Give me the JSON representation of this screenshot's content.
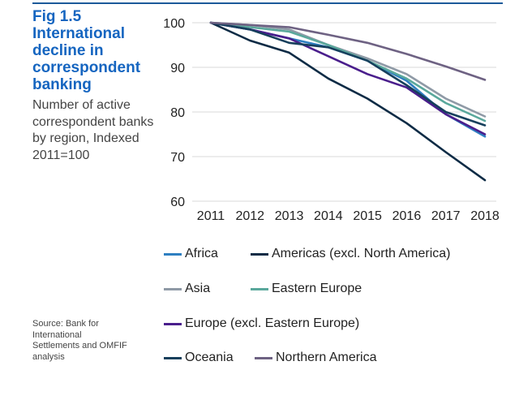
{
  "header": {
    "fig_title": "Fig 1.5 International decline in correspondent banking",
    "subtitle": "Number of active correspondent banks by region, Indexed 2011=100",
    "source": "Source: Bank for International Settlements and OMFIF analysis"
  },
  "chart_data": {
    "type": "line",
    "title": "Fig 1.5 International decline in correspondent banking",
    "subtitle": "Number of active correspondent banks by region, Indexed 2011=100",
    "xlabel": "",
    "ylabel": "",
    "x": [
      "2011",
      "2012",
      "2013",
      "2014",
      "2015",
      "2016",
      "2017",
      "2018"
    ],
    "ylim": [
      60,
      100
    ],
    "yticks": [
      "100",
      "90",
      "80",
      "70",
      "60"
    ],
    "grid": true,
    "legend_position": "bottom",
    "series": [
      {
        "name": "Africa",
        "color": "#2e7fc1",
        "values": [
          100,
          98.5,
          96.5,
          94.5,
          91.5,
          87,
          79.5,
          74.5
        ]
      },
      {
        "name": "Americas (excl. North America)",
        "color": "#0d2b45",
        "values": [
          100,
          96,
          93.3,
          87.5,
          83,
          77.5,
          71,
          64.7
        ]
      },
      {
        "name": "Asia",
        "color": "#8f9aa6",
        "values": [
          100,
          99.5,
          98.5,
          95,
          92,
          88.5,
          83,
          79
        ]
      },
      {
        "name": "Eastern Europe",
        "color": "#5aa89c",
        "values": [
          100,
          99,
          98,
          95,
          91.5,
          87.5,
          82,
          78
        ]
      },
      {
        "name": "Europe (excl. Eastern Europe)",
        "color": "#4a1e8c",
        "values": [
          100,
          98.5,
          96.5,
          92.5,
          88.5,
          85.5,
          79.5,
          75
        ]
      },
      {
        "name": "Oceania",
        "color": "#163f5c",
        "values": [
          100,
          98.5,
          95.5,
          94.5,
          91.5,
          86,
          80,
          77
        ]
      },
      {
        "name": "Northern America",
        "color": "#6e6283",
        "values": [
          100,
          99.5,
          99,
          97.3,
          95.5,
          93,
          90.2,
          87.2
        ]
      }
    ]
  }
}
